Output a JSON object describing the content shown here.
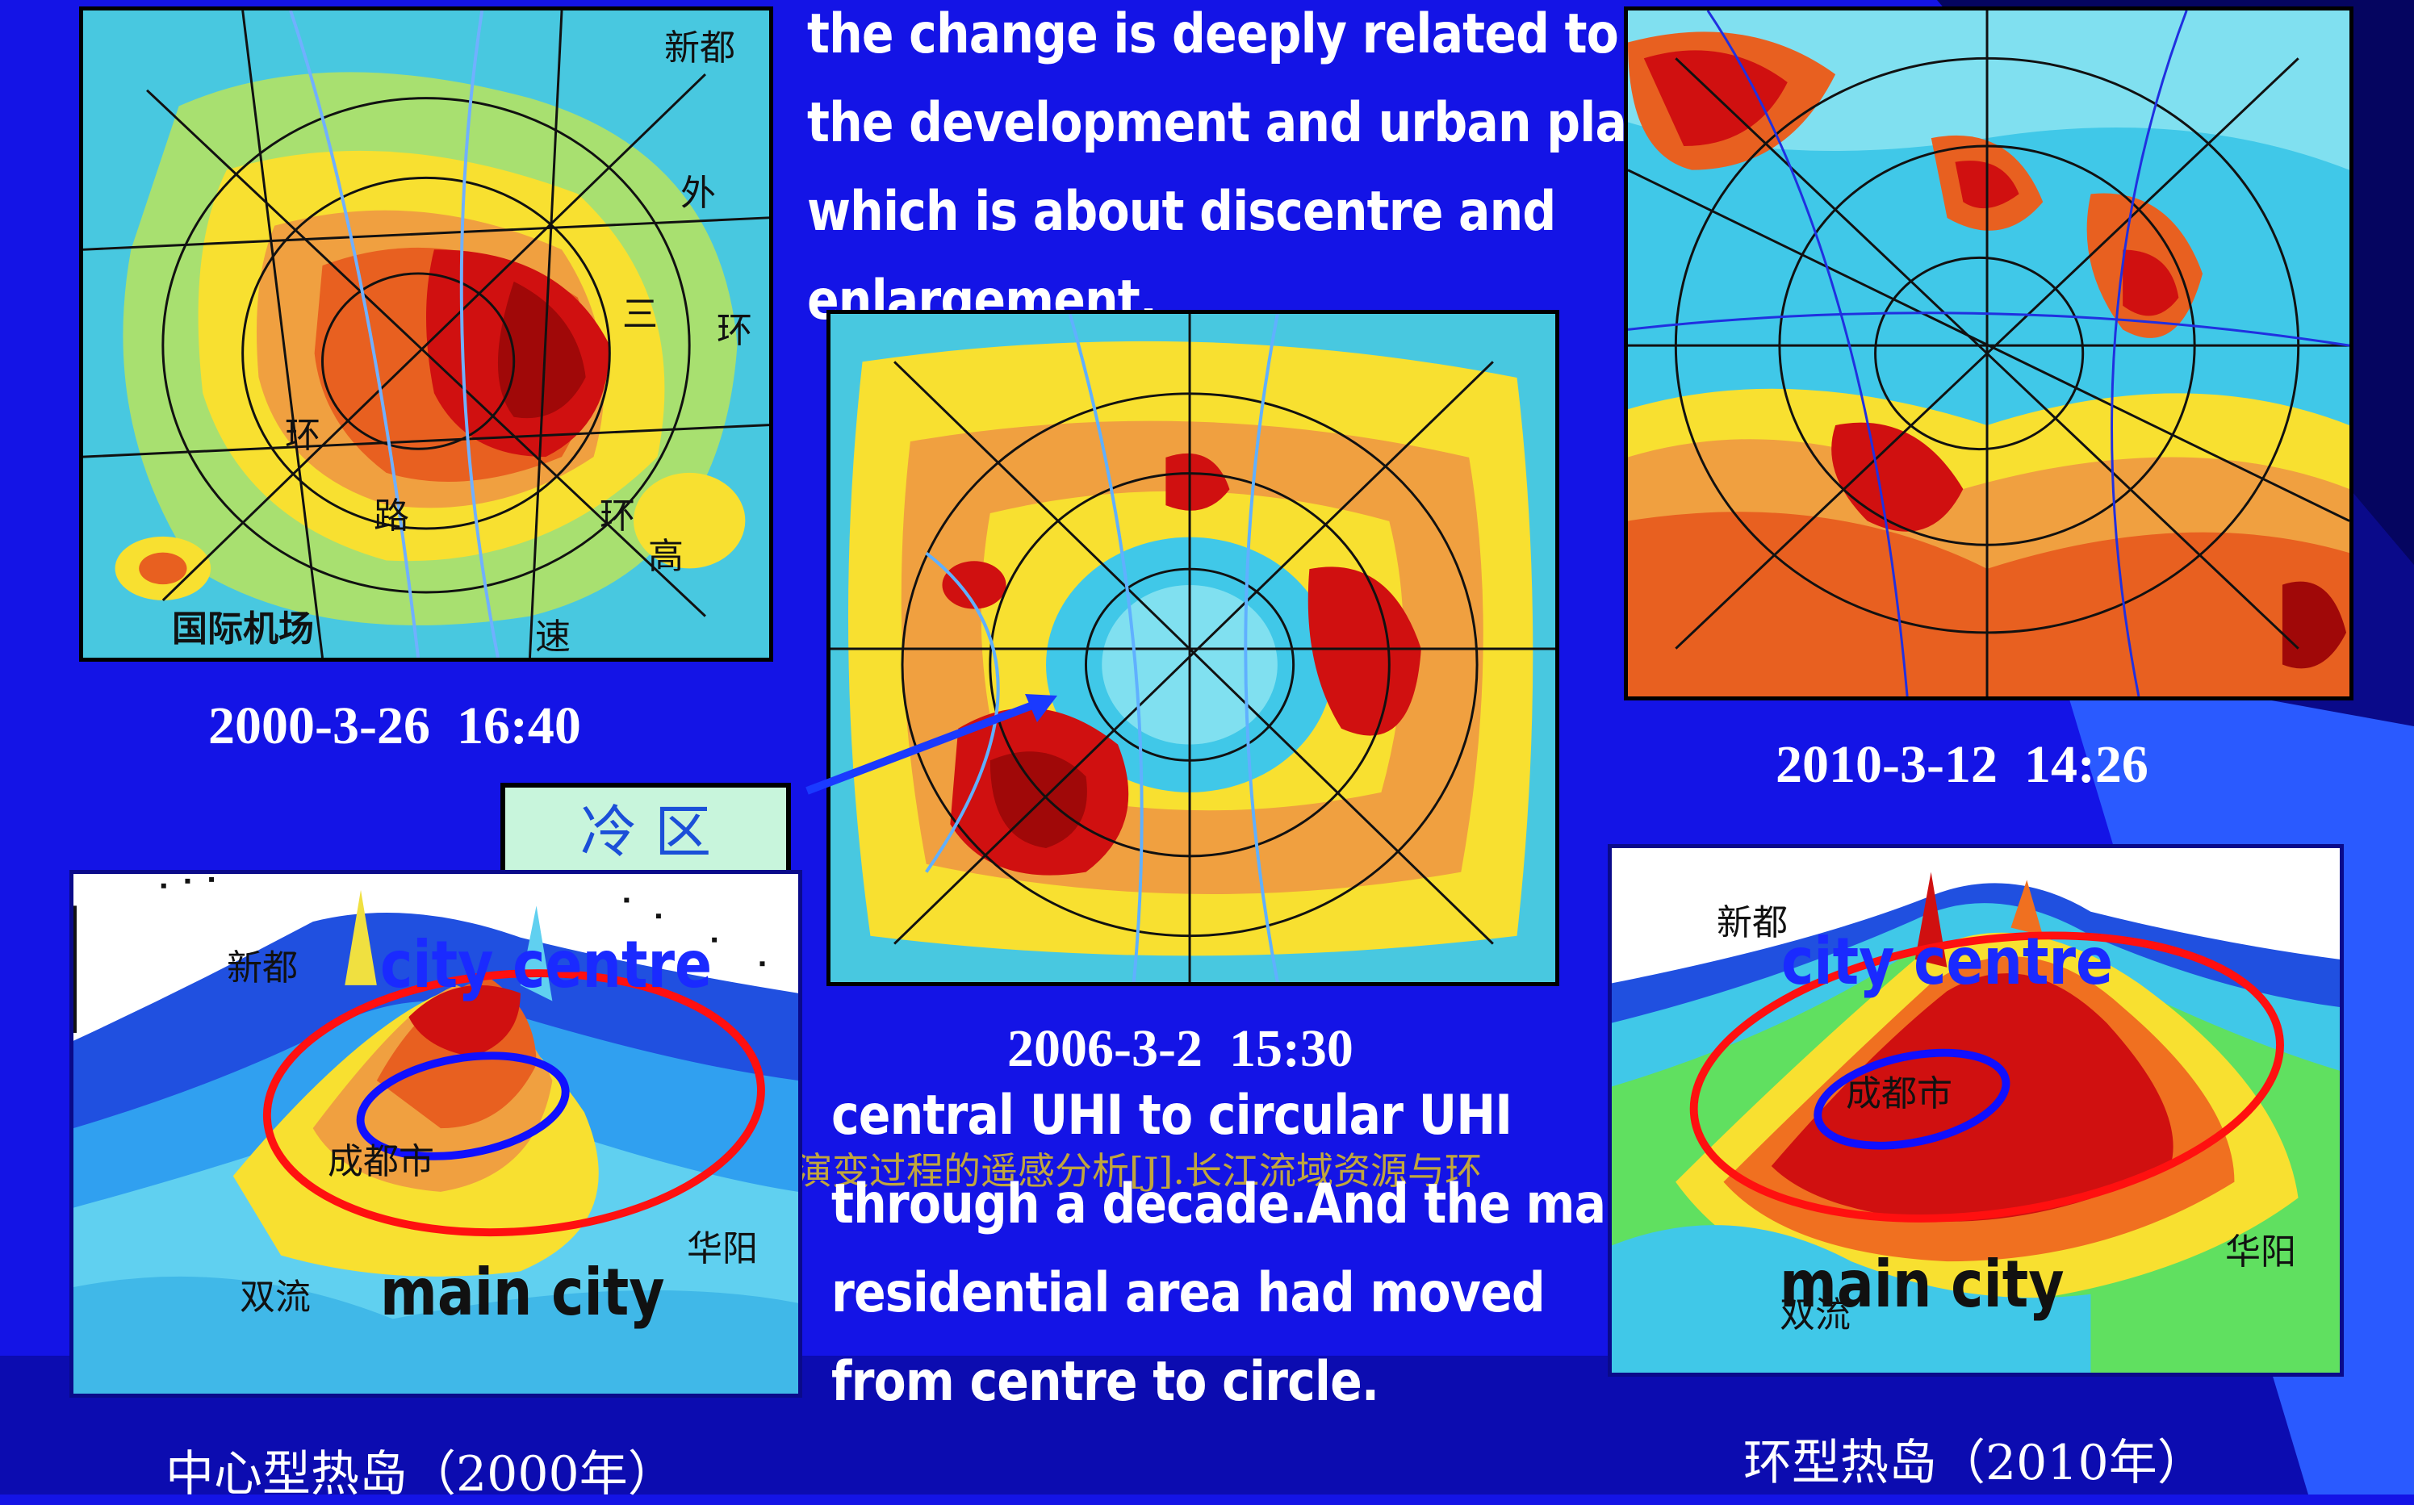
{
  "slide": {
    "paragraph_top": [
      "the change is deeply related to",
      "the development and urban plan",
      "which is about discentre and",
      "enlargement."
    ],
    "paragraph_bottom": [
      "central UHI to circular UHI",
      "through a decade.And the main",
      "residential area had moved",
      "from centre to circle."
    ],
    "captions": {
      "map_2000": "2000-3-26  16:40",
      "map_2006": "2006-3-2  15:30",
      "map_2010": "2010-3-12  14:26",
      "model_2000": "中心型热岛（2000年）",
      "model_2010": "环型热岛（2010年）"
    },
    "cold_zone_label": "冷 区",
    "citation_overlay": "演变过程的遥感分析[J].长江流域资源与环",
    "map_2000_labels": {
      "xindu": "新都",
      "wai": "外",
      "san": "三",
      "huan": "环",
      "huan2": "环",
      "huan3": "环",
      "lu": "路",
      "gao": "高",
      "su": "速",
      "airport": "国际机场"
    },
    "model_2000_labels": {
      "xindu": "新都",
      "city_centre": "city centre",
      "chengdu": "成都市",
      "huayang": "华阳",
      "shuangliu": "双流",
      "main_city": "main city"
    },
    "model_2010_labels": {
      "xindu": "新都",
      "city_centre": "city centre",
      "chengdu": "成都市",
      "huayang": "华阳",
      "shuangliu": "双流",
      "main_city": "main city"
    },
    "colors": {
      "background": "#1414e6",
      "heat_red": "#d01010",
      "heat_orange": "#f07020",
      "heat_yellow": "#f8e030",
      "cool_cyan": "#40c8e8",
      "ring_red": "#ff1010",
      "ring_blue": "#1010ff"
    }
  }
}
